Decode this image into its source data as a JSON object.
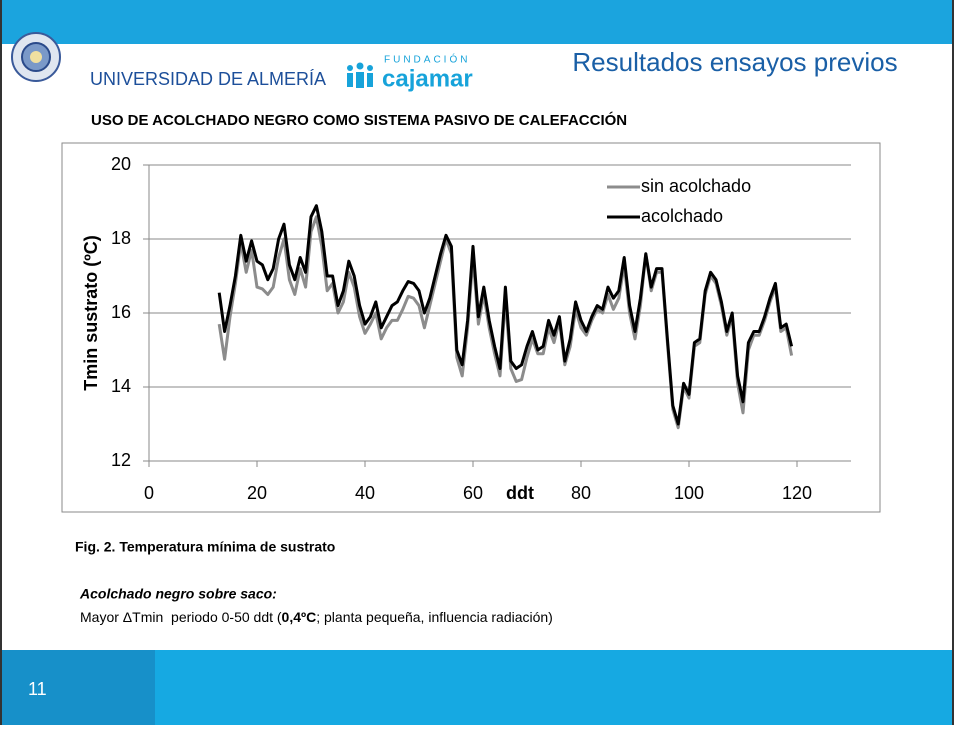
{
  "header": {
    "university": "UNIVERSIDAD DE ALMERÍA",
    "foundation_small": "FUNDACIÓN",
    "foundation": "cajamar",
    "title": "Resultados ensayos previos"
  },
  "chart_data": {
    "type": "line",
    "title": "USO DE ACOLCHADO NEGRO COMO SISTEMA PASIVO DE CALEFACCIÓN",
    "x_label": "ddt",
    "y_label": "Tmin sustrato (ºC)",
    "x": [
      13,
      14,
      15,
      16,
      17,
      18,
      19,
      20,
      21,
      22,
      23,
      24,
      25,
      26,
      27,
      28,
      29,
      30,
      31,
      32,
      33,
      34,
      35,
      36,
      37,
      38,
      39,
      40,
      41,
      42,
      43,
      44,
      45,
      46,
      47,
      48,
      49,
      50,
      51,
      52,
      53,
      54,
      55,
      56,
      57,
      58,
      59,
      60,
      61,
      62,
      63,
      64,
      65,
      66,
      67,
      68,
      69,
      70,
      71,
      72,
      73,
      74,
      75,
      76,
      77,
      78,
      79,
      80,
      81,
      82,
      83,
      84,
      85,
      86,
      87,
      88,
      89,
      90,
      91,
      92,
      93,
      94,
      95,
      96,
      97,
      98,
      99,
      100,
      101,
      102,
      103,
      104,
      105,
      106,
      107,
      108,
      109,
      110,
      111,
      112,
      113,
      114,
      115,
      116,
      117,
      118,
      119
    ],
    "series": [
      {
        "name": "sin acolchado",
        "color": "#8c8c8c",
        "values": [
          15.7,
          14.75,
          15.9,
          16.8,
          17.9,
          17.1,
          17.7,
          16.7,
          16.65,
          16.5,
          16.7,
          17.5,
          18.0,
          16.9,
          16.5,
          17.2,
          16.7,
          18.2,
          18.6,
          17.8,
          16.6,
          16.8,
          16.0,
          16.3,
          17.1,
          16.7,
          15.9,
          15.45,
          15.7,
          16.0,
          15.3,
          15.6,
          15.8,
          15.8,
          16.1,
          16.45,
          16.4,
          16.2,
          15.6,
          16.2,
          16.8,
          17.4,
          18.0,
          17.6,
          14.8,
          14.3,
          15.6,
          17.5,
          15.7,
          16.5,
          15.6,
          14.9,
          14.3,
          16.4,
          14.5,
          14.15,
          14.2,
          14.8,
          15.3,
          14.9,
          14.9,
          15.6,
          15.2,
          15.8,
          14.6,
          15.1,
          16.1,
          15.6,
          15.4,
          15.8,
          16.1,
          16.0,
          16.5,
          16.1,
          16.4,
          17.3,
          16.0,
          15.3,
          16.2,
          17.6,
          16.6,
          17.1,
          17.1,
          15.2,
          13.4,
          12.9,
          14.0,
          13.7,
          15.1,
          15.2,
          16.5,
          17.0,
          16.8,
          16.2,
          15.4,
          15.9,
          14.1,
          13.3,
          15.0,
          15.4,
          15.4,
          15.8,
          16.3,
          16.7,
          15.5,
          15.6,
          14.85
        ]
      },
      {
        "name": "acolchado",
        "color": "#000000",
        "values": [
          16.55,
          15.5,
          16.2,
          17.0,
          18.1,
          17.4,
          17.95,
          17.4,
          17.3,
          16.9,
          17.2,
          18.0,
          18.4,
          17.3,
          16.9,
          17.5,
          17.1,
          18.6,
          18.9,
          18.2,
          17.0,
          17.0,
          16.2,
          16.6,
          17.4,
          17.0,
          16.2,
          15.7,
          15.9,
          16.3,
          15.6,
          15.9,
          16.2,
          16.3,
          16.6,
          16.85,
          16.8,
          16.6,
          16.0,
          16.4,
          17.0,
          17.6,
          18.1,
          17.8,
          15.0,
          14.6,
          15.8,
          17.8,
          15.9,
          16.7,
          15.8,
          15.1,
          14.5,
          16.7,
          14.7,
          14.5,
          14.6,
          15.1,
          15.5,
          15.0,
          15.1,
          15.8,
          15.4,
          15.9,
          14.7,
          15.3,
          16.3,
          15.8,
          15.5,
          15.9,
          16.2,
          16.1,
          16.7,
          16.4,
          16.6,
          17.5,
          16.2,
          15.5,
          16.4,
          17.6,
          16.7,
          17.2,
          17.2,
          15.3,
          13.5,
          13.0,
          14.1,
          13.8,
          15.2,
          15.3,
          16.6,
          17.1,
          16.9,
          16.3,
          15.5,
          16.0,
          14.3,
          13.6,
          15.2,
          15.5,
          15.5,
          15.9,
          16.4,
          16.8,
          15.6,
          15.7,
          15.1
        ]
      }
    ],
    "xlim": [
      0,
      130
    ],
    "xticks": [
      0,
      20,
      40,
      60,
      80,
      100,
      120
    ],
    "ylim": [
      12,
      20
    ],
    "yticks": [
      12,
      14,
      16,
      18,
      20
    ],
    "grid": true,
    "legend": "top-right"
  },
  "caption": "Fig. 2. Temperatura mínima de sustrato",
  "note": {
    "heading": "Acolchado negro sobre saco:",
    "body": [
      "Mayor ΔTmin  periodo 0-50 ddt (",
      "0,4ºC",
      "; planta pequeña, influencia radiación)"
    ]
  },
  "footer": {
    "page": "11"
  }
}
